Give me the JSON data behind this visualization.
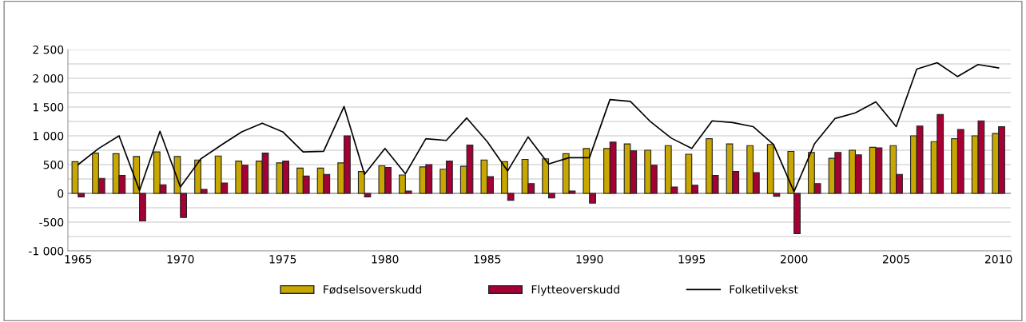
{
  "chart_data": {
    "type": "bar",
    "x": [
      1965,
      1966,
      1967,
      1968,
      1969,
      1970,
      1971,
      1972,
      1973,
      1974,
      1975,
      1976,
      1977,
      1978,
      1979,
      1980,
      1981,
      1982,
      1983,
      1984,
      1985,
      1986,
      1987,
      1988,
      1989,
      1990,
      1991,
      1992,
      1993,
      1994,
      1995,
      1996,
      1997,
      1998,
      1999,
      2000,
      2001,
      2002,
      2003,
      2004,
      2005,
      2006,
      2007,
      2008,
      2009,
      2010
    ],
    "series": [
      {
        "name": "Fødselsoverskudd",
        "color": "#c8a800",
        "values": [
          550,
          700,
          690,
          640,
          720,
          640,
          580,
          650,
          560,
          560,
          530,
          440,
          440,
          530,
          380,
          480,
          320,
          460,
          420,
          470,
          580,
          550,
          590,
          600,
          690,
          780,
          780,
          860,
          750,
          830,
          680,
          950,
          860,
          830,
          850,
          730,
          710,
          610,
          750,
          800,
          830,
          1000,
          900,
          950,
          1000,
          1040
        ]
      },
      {
        "name": "Flytteoverskudd",
        "color": "#a50034",
        "values": [
          -60,
          260,
          310,
          -480,
          150,
          -420,
          70,
          180,
          490,
          700,
          560,
          300,
          330,
          1000,
          -60,
          450,
          40,
          500,
          560,
          840,
          290,
          -120,
          170,
          -80,
          40,
          -170,
          890,
          740,
          490,
          110,
          140,
          310,
          380,
          360,
          -50,
          -700,
          170,
          710,
          670,
          790,
          330,
          1170,
          1370,
          1110,
          1260,
          1160
        ]
      },
      {
        "name": "Folketilvekst",
        "color": "#000000",
        "type": "line",
        "values": [
          500,
          780,
          1000,
          50,
          1080,
          110,
          600,
          840,
          1070,
          1220,
          1070,
          720,
          730,
          1510,
          330,
          780,
          340,
          950,
          920,
          1310,
          900,
          390,
          980,
          510,
          620,
          620,
          1630,
          1600,
          1240,
          960,
          780,
          1260,
          1230,
          1160,
          850,
          30,
          860,
          1300,
          1400,
          1590,
          1160,
          2160,
          2270,
          2030,
          2240,
          2180
        ]
      }
    ],
    "xlim": [
      1964.5,
      2010.6
    ],
    "xticks": [
      1965,
      1970,
      1975,
      1980,
      1985,
      1990,
      1995,
      2000,
      2005,
      2010
    ],
    "ylim": [
      -1000,
      2500
    ],
    "yticks": [
      {
        "value": -1000,
        "label": "-1 000"
      },
      {
        "value": -750,
        "label": null
      },
      {
        "value": -500,
        "label": "-500"
      },
      {
        "value": -250,
        "label": null
      },
      0,
      {
        "value": 250,
        "label": null
      },
      500,
      {
        "value": 750,
        "label": null
      },
      {
        "value": 1000,
        "label": "1 000"
      },
      {
        "value": 1250,
        "label": null
      },
      {
        "value": 1500,
        "label": "1 500"
      },
      {
        "value": 1750,
        "label": null
      },
      {
        "value": 2000,
        "label": "2 000"
      },
      {
        "value": 2250,
        "label": null
      },
      {
        "value": 2500,
        "label": "2 500"
      }
    ],
    "grid": "y",
    "legend": "bottom",
    "marker": "none",
    "line_style": "solid"
  }
}
